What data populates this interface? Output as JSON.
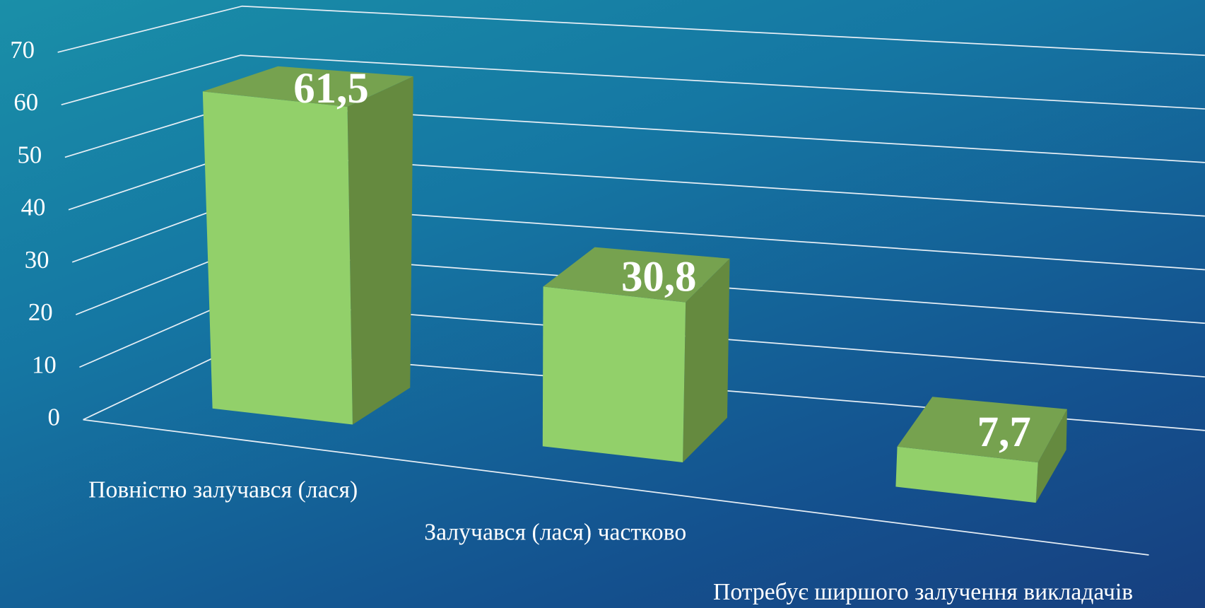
{
  "chart_data": {
    "type": "bar3d",
    "categories": [
      "Повністю залучався (лася)",
      "Залучався (лася) частково",
      "Потребує ширшого залучення викладачів"
    ],
    "values": [
      61.5,
      30.8,
      7.7
    ],
    "value_labels": [
      "61,5",
      "30,8",
      "7,7"
    ],
    "color": "#92d06a",
    "ylim": [
      0,
      70
    ],
    "yticks": [
      0,
      10,
      20,
      30,
      40,
      50,
      60,
      70
    ],
    "grid": true
  }
}
